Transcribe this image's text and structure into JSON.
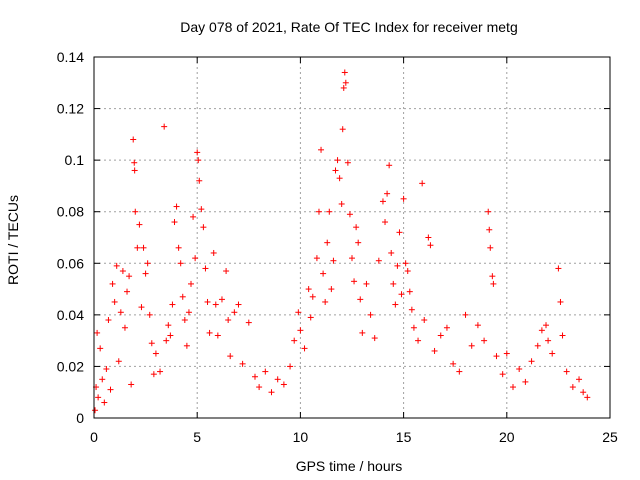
{
  "chart_data": {
    "type": "scatter",
    "title": "Day 078 of 2021, Rate Of TEC Index for receiver metg",
    "xlabel": "GPS time / hours",
    "ylabel": "ROTI / TECUs",
    "xlim": [
      0,
      25
    ],
    "ylim": [
      0,
      0.14
    ],
    "x_ticks": [
      0,
      5,
      10,
      15,
      20,
      25
    ],
    "x_tick_labels": [
      "0",
      "5",
      "10",
      "15",
      "20",
      "25"
    ],
    "y_ticks": [
      0,
      0.02,
      0.04,
      0.06,
      0.08,
      0.1,
      0.12,
      0.14
    ],
    "y_tick_labels": [
      "0",
      "0.02",
      "0.04",
      "0.06",
      "0.08",
      "0.1",
      "0.12",
      "0.14"
    ],
    "grid": true,
    "marker": "+",
    "series": [
      {
        "color": "#ff0000",
        "points": [
          [
            0.05,
            0.003
          ],
          [
            0.1,
            0.012
          ],
          [
            0.15,
            0.033
          ],
          [
            0.2,
            0.008
          ],
          [
            0.3,
            0.027
          ],
          [
            0.4,
            0.015
          ],
          [
            0.5,
            0.006
          ],
          [
            0.6,
            0.019
          ],
          [
            0.7,
            0.038
          ],
          [
            0.8,
            0.011
          ],
          [
            0.9,
            0.052
          ],
          [
            1.0,
            0.045
          ],
          [
            1.1,
            0.059
          ],
          [
            1.2,
            0.022
          ],
          [
            1.3,
            0.041
          ],
          [
            1.4,
            0.057
          ],
          [
            1.5,
            0.035
          ],
          [
            1.6,
            0.049
          ],
          [
            1.7,
            0.055
          ],
          [
            1.8,
            0.013
          ],
          [
            1.9,
            0.108
          ],
          [
            1.95,
            0.099
          ],
          [
            1.97,
            0.096
          ],
          [
            2.0,
            0.08
          ],
          [
            2.1,
            0.066
          ],
          [
            2.2,
            0.075
          ],
          [
            2.3,
            0.043
          ],
          [
            2.4,
            0.066
          ],
          [
            2.5,
            0.056
          ],
          [
            2.6,
            0.06
          ],
          [
            2.7,
            0.04
          ],
          [
            2.8,
            0.029
          ],
          [
            2.9,
            0.017
          ],
          [
            3.0,
            0.025
          ],
          [
            3.2,
            0.018
          ],
          [
            3.4,
            0.113
          ],
          [
            3.5,
            0.03
          ],
          [
            3.6,
            0.036
          ],
          [
            3.7,
            0.032
          ],
          [
            3.8,
            0.044
          ],
          [
            3.9,
            0.076
          ],
          [
            4.0,
            0.082
          ],
          [
            4.1,
            0.066
          ],
          [
            4.2,
            0.06
          ],
          [
            4.3,
            0.047
          ],
          [
            4.4,
            0.038
          ],
          [
            4.5,
            0.028
          ],
          [
            4.6,
            0.041
          ],
          [
            4.7,
            0.052
          ],
          [
            4.8,
            0.078
          ],
          [
            4.9,
            0.062
          ],
          [
            5.0,
            0.103
          ],
          [
            5.05,
            0.1
          ],
          [
            5.1,
            0.092
          ],
          [
            5.2,
            0.081
          ],
          [
            5.3,
            0.074
          ],
          [
            5.4,
            0.058
          ],
          [
            5.5,
            0.045
          ],
          [
            5.6,
            0.033
          ],
          [
            5.8,
            0.064
          ],
          [
            5.9,
            0.044
          ],
          [
            6.0,
            0.032
          ],
          [
            6.2,
            0.046
          ],
          [
            6.4,
            0.057
          ],
          [
            6.5,
            0.038
          ],
          [
            6.6,
            0.024
          ],
          [
            6.8,
            0.041
          ],
          [
            7.0,
            0.044
          ],
          [
            7.2,
            0.021
          ],
          [
            7.5,
            0.037
          ],
          [
            7.8,
            0.016
          ],
          [
            8.0,
            0.012
          ],
          [
            8.3,
            0.018
          ],
          [
            8.6,
            0.01
          ],
          [
            8.9,
            0.015
          ],
          [
            9.2,
            0.013
          ],
          [
            9.5,
            0.02
          ],
          [
            9.7,
            0.03
          ],
          [
            9.9,
            0.041
          ],
          [
            10.0,
            0.034
          ],
          [
            10.2,
            0.027
          ],
          [
            10.4,
            0.05
          ],
          [
            10.5,
            0.039
          ],
          [
            10.6,
            0.047
          ],
          [
            10.8,
            0.062
          ],
          [
            10.9,
            0.08
          ],
          [
            11.0,
            0.104
          ],
          [
            11.1,
            0.056
          ],
          [
            11.2,
            0.045
          ],
          [
            11.3,
            0.068
          ],
          [
            11.4,
            0.08
          ],
          [
            11.5,
            0.05
          ],
          [
            11.6,
            0.061
          ],
          [
            11.7,
            0.096
          ],
          [
            11.8,
            0.1
          ],
          [
            11.9,
            0.093
          ],
          [
            12.0,
            0.083
          ],
          [
            12.05,
            0.112
          ],
          [
            12.1,
            0.128
          ],
          [
            12.15,
            0.134
          ],
          [
            12.2,
            0.13
          ],
          [
            12.3,
            0.099
          ],
          [
            12.4,
            0.079
          ],
          [
            12.5,
            0.062
          ],
          [
            12.6,
            0.053
          ],
          [
            12.7,
            0.074
          ],
          [
            12.8,
            0.068
          ],
          [
            12.9,
            0.046
          ],
          [
            13.0,
            0.033
          ],
          [
            13.2,
            0.052
          ],
          [
            13.4,
            0.04
          ],
          [
            13.6,
            0.031
          ],
          [
            13.8,
            0.061
          ],
          [
            14.0,
            0.084
          ],
          [
            14.1,
            0.076
          ],
          [
            14.2,
            0.087
          ],
          [
            14.3,
            0.098
          ],
          [
            14.4,
            0.064
          ],
          [
            14.5,
            0.052
          ],
          [
            14.6,
            0.044
          ],
          [
            14.7,
            0.059
          ],
          [
            14.8,
            0.072
          ],
          [
            14.9,
            0.048
          ],
          [
            15.0,
            0.085
          ],
          [
            15.1,
            0.06
          ],
          [
            15.2,
            0.057
          ],
          [
            15.3,
            0.049
          ],
          [
            15.4,
            0.042
          ],
          [
            15.5,
            0.035
          ],
          [
            15.7,
            0.03
          ],
          [
            15.9,
            0.091
          ],
          [
            16.0,
            0.038
          ],
          [
            16.2,
            0.07
          ],
          [
            16.3,
            0.067
          ],
          [
            16.5,
            0.026
          ],
          [
            16.8,
            0.032
          ],
          [
            17.1,
            0.035
          ],
          [
            17.4,
            0.021
          ],
          [
            17.7,
            0.018
          ],
          [
            18.0,
            0.04
          ],
          [
            18.3,
            0.028
          ],
          [
            18.6,
            0.036
          ],
          [
            18.9,
            0.03
          ],
          [
            19.1,
            0.08
          ],
          [
            19.15,
            0.073
          ],
          [
            19.2,
            0.066
          ],
          [
            19.3,
            0.055
          ],
          [
            19.35,
            0.052
          ],
          [
            19.5,
            0.024
          ],
          [
            19.8,
            0.017
          ],
          [
            20.0,
            0.025
          ],
          [
            20.3,
            0.012
          ],
          [
            20.6,
            0.019
          ],
          [
            20.9,
            0.014
          ],
          [
            21.2,
            0.022
          ],
          [
            21.5,
            0.028
          ],
          [
            21.7,
            0.034
          ],
          [
            21.9,
            0.036
          ],
          [
            22.0,
            0.03
          ],
          [
            22.2,
            0.025
          ],
          [
            22.5,
            0.058
          ],
          [
            22.6,
            0.045
          ],
          [
            22.7,
            0.032
          ],
          [
            22.9,
            0.018
          ],
          [
            23.2,
            0.012
          ],
          [
            23.5,
            0.015
          ],
          [
            23.7,
            0.01
          ],
          [
            23.9,
            0.008
          ]
        ]
      }
    ]
  }
}
